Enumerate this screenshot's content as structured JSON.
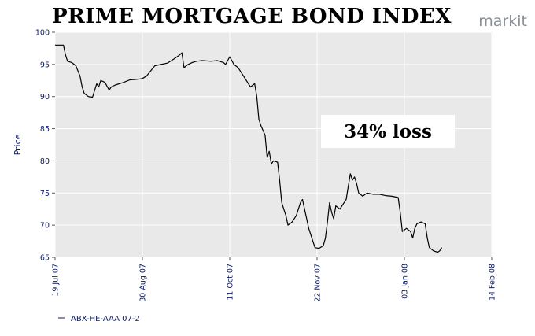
{
  "chart_data": {
    "type": "line",
    "title": "PRIME MORTGAGE BOND INDEX",
    "xlabel": "",
    "ylabel": "Price",
    "ylim": [
      65,
      100
    ],
    "yticks": [
      65,
      70,
      75,
      80,
      85,
      90,
      95,
      100
    ],
    "xlim": [
      "2007-07-19",
      "2008-02-14"
    ],
    "xticks": [
      {
        "date": "2007-07-19",
        "label": "19 Jul 07"
      },
      {
        "date": "2007-08-30",
        "label": "30 Aug 07"
      },
      {
        "date": "2007-10-11",
        "label": "11 Oct 07"
      },
      {
        "date": "2007-11-22",
        "label": "22 Nov 07"
      },
      {
        "date": "2008-01-03",
        "label": "03 Jan 08"
      },
      {
        "date": "2008-02-14",
        "label": "14 Feb 08"
      }
    ],
    "grid": true,
    "legend_position": "bottom-left",
    "series": [
      {
        "name": "ABX-HE-AAA 07-2",
        "color": "#000000",
        "points": [
          [
            "2007-07-19",
            98.0
          ],
          [
            "2007-07-21",
            98.0
          ],
          [
            "2007-07-23",
            98.0
          ],
          [
            "2007-07-24",
            96.5
          ],
          [
            "2007-07-25",
            95.5
          ],
          [
            "2007-07-27",
            95.3
          ],
          [
            "2007-07-29",
            94.8
          ],
          [
            "2007-07-31",
            93.2
          ],
          [
            "2007-08-01",
            91.5
          ],
          [
            "2007-08-02",
            90.5
          ],
          [
            "2007-08-04",
            90.0
          ],
          [
            "2007-08-06",
            89.9
          ],
          [
            "2007-08-08",
            92.0
          ],
          [
            "2007-08-09",
            91.5
          ],
          [
            "2007-08-10",
            92.5
          ],
          [
            "2007-08-12",
            92.2
          ],
          [
            "2007-08-14",
            91.0
          ],
          [
            "2007-08-15",
            91.5
          ],
          [
            "2007-08-17",
            91.8
          ],
          [
            "2007-08-21",
            92.2
          ],
          [
            "2007-08-24",
            92.6
          ],
          [
            "2007-08-28",
            92.7
          ],
          [
            "2007-08-30",
            92.8
          ],
          [
            "2007-09-01",
            93.2
          ],
          [
            "2007-09-03",
            94.0
          ],
          [
            "2007-09-05",
            94.8
          ],
          [
            "2007-09-08",
            95.0
          ],
          [
            "2007-09-11",
            95.2
          ],
          [
            "2007-09-14",
            95.8
          ],
          [
            "2007-09-17",
            96.5
          ],
          [
            "2007-09-18",
            96.8
          ],
          [
            "2007-09-19",
            94.5
          ],
          [
            "2007-09-21",
            95.0
          ],
          [
            "2007-09-23",
            95.3
          ],
          [
            "2007-09-25",
            95.5
          ],
          [
            "2007-09-28",
            95.6
          ],
          [
            "2007-10-02",
            95.5
          ],
          [
            "2007-10-05",
            95.6
          ],
          [
            "2007-10-08",
            95.3
          ],
          [
            "2007-10-09",
            95.0
          ],
          [
            "2007-10-11",
            96.2
          ],
          [
            "2007-10-13",
            95.0
          ],
          [
            "2007-10-15",
            94.5
          ],
          [
            "2007-10-17",
            93.5
          ],
          [
            "2007-10-19",
            92.5
          ],
          [
            "2007-10-21",
            91.5
          ],
          [
            "2007-10-23",
            92.0
          ],
          [
            "2007-10-24",
            90.0
          ],
          [
            "2007-10-25",
            86.5
          ],
          [
            "2007-10-26",
            85.5
          ],
          [
            "2007-10-28",
            84.0
          ],
          [
            "2007-10-29",
            80.5
          ],
          [
            "2007-10-30",
            81.5
          ],
          [
            "2007-10-31",
            79.5
          ],
          [
            "2007-11-01",
            80.0
          ],
          [
            "2007-11-03",
            79.8
          ],
          [
            "2007-11-04",
            77.0
          ],
          [
            "2007-11-05",
            73.5
          ],
          [
            "2007-11-06",
            72.5
          ],
          [
            "2007-11-07",
            71.5
          ],
          [
            "2007-11-08",
            70.0
          ],
          [
            "2007-11-10",
            70.5
          ],
          [
            "2007-11-12",
            71.5
          ],
          [
            "2007-11-14",
            73.5
          ],
          [
            "2007-11-15",
            74.0
          ],
          [
            "2007-11-16",
            72.5
          ],
          [
            "2007-11-17",
            71.0
          ],
          [
            "2007-11-18",
            69.5
          ],
          [
            "2007-11-20",
            67.5
          ],
          [
            "2007-11-21",
            66.5
          ],
          [
            "2007-11-23",
            66.4
          ],
          [
            "2007-11-25",
            66.8
          ],
          [
            "2007-11-26",
            68.0
          ],
          [
            "2007-11-27",
            70.5
          ],
          [
            "2007-11-28",
            73.5
          ],
          [
            "2007-11-29",
            72.0
          ],
          [
            "2007-11-30",
            71.0
          ],
          [
            "2007-12-01",
            73.0
          ],
          [
            "2007-12-03",
            72.5
          ],
          [
            "2007-12-04",
            73.0
          ],
          [
            "2007-12-06",
            74.0
          ],
          [
            "2007-12-07",
            76.0
          ],
          [
            "2007-12-08",
            78.0
          ],
          [
            "2007-12-09",
            77.0
          ],
          [
            "2007-12-10",
            77.5
          ],
          [
            "2007-12-11",
            76.5
          ],
          [
            "2007-12-12",
            75.0
          ],
          [
            "2007-12-14",
            74.5
          ],
          [
            "2007-12-16",
            75.0
          ],
          [
            "2007-12-19",
            74.8
          ],
          [
            "2007-12-22",
            74.8
          ],
          [
            "2007-12-25",
            74.6
          ],
          [
            "2007-12-28",
            74.5
          ],
          [
            "2007-12-31",
            74.3
          ],
          [
            "2008-01-01",
            72.0
          ],
          [
            "2008-01-02",
            69.0
          ],
          [
            "2008-01-04",
            69.5
          ],
          [
            "2008-01-06",
            69.0
          ],
          [
            "2008-01-07",
            68.0
          ],
          [
            "2008-01-08",
            69.5
          ],
          [
            "2008-01-09",
            70.2
          ],
          [
            "2008-01-11",
            70.5
          ],
          [
            "2008-01-13",
            70.2
          ],
          [
            "2008-01-14",
            68.0
          ],
          [
            "2008-01-15",
            66.5
          ],
          [
            "2008-01-17",
            66.0
          ],
          [
            "2008-01-19",
            65.8
          ],
          [
            "2008-01-20",
            66.0
          ],
          [
            "2008-01-21",
            66.5
          ]
        ]
      }
    ],
    "annotations": [
      {
        "text": "34% loss",
        "x": "2007-12-14",
        "y": 83.5
      }
    ]
  },
  "branding": {
    "logo_text": "markit"
  },
  "colors": {
    "plot_background": "#e9e9e9",
    "grid": "#ffffff",
    "axis_text": "#0b1a66",
    "line": "#000000"
  }
}
